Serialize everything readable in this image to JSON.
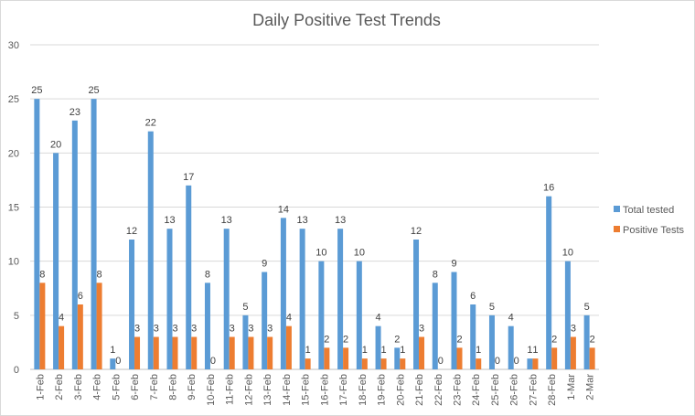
{
  "chart_data": {
    "type": "bar",
    "title": "Daily Positive Test Trends",
    "xlabel": "",
    "ylabel": "",
    "ylim": [
      0,
      30
    ],
    "yticks": [
      0,
      5,
      10,
      15,
      20,
      25,
      30
    ],
    "grid": true,
    "legend_position": "right",
    "categories": [
      "1-Feb",
      "2-Feb",
      "3-Feb",
      "4-Feb",
      "5-Feb",
      "6-Feb",
      "7-Feb",
      "8-Feb",
      "9-Feb",
      "10-Feb",
      "11-Feb",
      "12-Feb",
      "13-Feb",
      "14-Feb",
      "15-Feb",
      "16-Feb",
      "17-Feb",
      "18-Feb",
      "19-Feb",
      "20-Feb",
      "21-Feb",
      "22-Feb",
      "23-Feb",
      "24-Feb",
      "25-Feb",
      "26-Feb",
      "27-Feb",
      "28-Feb",
      "1-Mar",
      "2-Mar"
    ],
    "series": [
      {
        "name": "Total tested",
        "color": "#5b9bd5",
        "values": [
          25,
          20,
          23,
          25,
          1,
          12,
          22,
          13,
          17,
          8,
          13,
          5,
          9,
          14,
          13,
          10,
          13,
          10,
          4,
          2,
          12,
          8,
          9,
          6,
          5,
          4,
          1,
          16,
          10,
          5
        ]
      },
      {
        "name": "Positive Tests",
        "color": "#ed7d31",
        "values": [
          8,
          4,
          6,
          8,
          0,
          3,
          3,
          3,
          3,
          0,
          3,
          3,
          3,
          4,
          1,
          2,
          2,
          1,
          1,
          1,
          3,
          0,
          2,
          1,
          0,
          0,
          1,
          2,
          3,
          2
        ]
      }
    ]
  }
}
